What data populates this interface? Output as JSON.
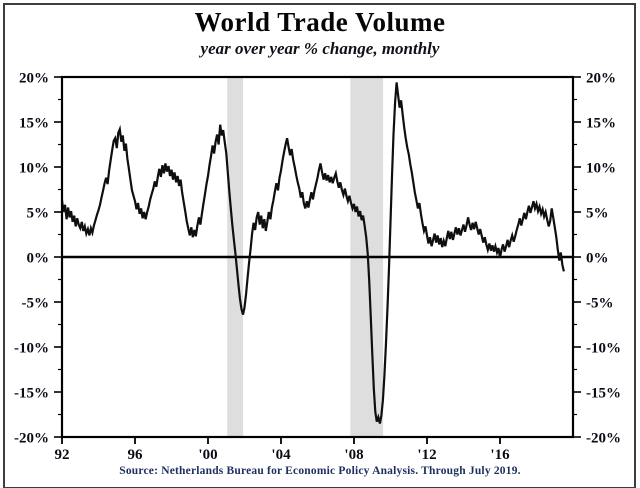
{
  "chart": {
    "title": "World Trade Volume",
    "subtitle": "year over year % change, monthly",
    "source": "Source: Netherlands Bureau for Economic Policy Analysis. Through July 2019."
  },
  "chart_data": {
    "type": "line",
    "title": "World Trade Volume",
    "subtitle": "year over year % change, monthly",
    "xlabel": "",
    "ylabel": "year over year % change",
    "xlim": [
      1992,
      2020
    ],
    "ylim": [
      -20,
      20
    ],
    "grid": false,
    "axes_on_both_sides": true,
    "zero_line": true,
    "line_color": "#0f0f0f",
    "band_color": "#dedede",
    "label_color": "#0b0b16",
    "y_tick_step": 5,
    "y_minor_tick_step": 2.5,
    "y_tick_labels": [
      {
        "value": 20,
        "label": "20%"
      },
      {
        "value": 15,
        "label": "15%"
      },
      {
        "value": 10,
        "label": "10%"
      },
      {
        "value": 5,
        "label": "5%"
      },
      {
        "value": 0,
        "label": "0%"
      },
      {
        "value": -5,
        "label": "-5%"
      },
      {
        "value": -10,
        "label": "-10%"
      },
      {
        "value": -15,
        "label": "-15%"
      },
      {
        "value": -20,
        "label": "-20%"
      }
    ],
    "x_ticks": [
      {
        "year": 1992,
        "label": "92"
      },
      {
        "year": 1996,
        "label": "96"
      },
      {
        "year": 2000,
        "label": "'00"
      },
      {
        "year": 2004,
        "label": "'04"
      },
      {
        "year": 2008,
        "label": "'08"
      },
      {
        "year": 2012,
        "label": "'12"
      },
      {
        "year": 2016,
        "label": "'16"
      }
    ],
    "recession_bands": [
      {
        "start": 2001.05,
        "end": 2001.92
      },
      {
        "start": 2007.8,
        "end": 2009.6
      }
    ],
    "series_name": "World trade volume, yoy % change",
    "x_start_year": 1992,
    "frequency": "monthly",
    "values": [
      6.3,
      5.0,
      5.8,
      4.2,
      5.5,
      4.4,
      5.1,
      3.9,
      4.6,
      3.4,
      4.3,
      3.6,
      3.2,
      3.9,
      2.9,
      3.4,
      2.6,
      3.1,
      2.4,
      3.2,
      2.7,
      3.5,
      4.1,
      4.7,
      5.2,
      5.8,
      6.6,
      7.4,
      8.2,
      8.8,
      8.1,
      9.6,
      10.8,
      11.9,
      12.9,
      13.2,
      12.1,
      13.8,
      14.2,
      12.8,
      13.5,
      11.8,
      12.6,
      10.9,
      9.8,
      8.6,
      7.4,
      6.8,
      6.2,
      5.3,
      6.0,
      4.8,
      5.4,
      4.3,
      5.0,
      4.2,
      5.0,
      5.6,
      6.4,
      7.0,
      7.6,
      8.4,
      7.8,
      8.9,
      9.8,
      8.9,
      10.2,
      9.3,
      10.4,
      9.5,
      10.1,
      9.0,
      9.7,
      8.6,
      9.4,
      8.3,
      9.0,
      7.9,
      8.6,
      7.2,
      6.1,
      5.1,
      4.0,
      3.2,
      2.4,
      3.3,
      2.2,
      3.0,
      2.3,
      3.5,
      4.4,
      3.6,
      4.8,
      5.9,
      7.0,
      8.1,
      9.0,
      10.2,
      11.2,
      12.4,
      11.5,
      12.8,
      13.6,
      12.5,
      14.7,
      13.5,
      14.1,
      12.8,
      11.5,
      9.4,
      7.3,
      5.4,
      3.6,
      1.9,
      0.4,
      -1.3,
      -3.0,
      -4.6,
      -5.8,
      -6.4,
      -5.6,
      -4.2,
      -2.4,
      -0.6,
      0.9,
      2.6,
      3.8,
      3.0,
      4.4,
      5.0,
      3.6,
      4.6,
      3.2,
      4.2,
      2.9,
      3.9,
      5.0,
      4.2,
      5.5,
      6.3,
      7.3,
      8.2,
      7.4,
      8.8,
      9.6,
      10.7,
      11.6,
      12.5,
      13.2,
      12.2,
      11.3,
      12.0,
      10.8,
      10.0,
      9.1,
      8.3,
      7.6,
      6.6,
      7.2,
      6.0,
      5.4,
      6.2,
      5.5,
      6.4,
      7.2,
      6.4,
      7.4,
      8.1,
      8.8,
      9.7,
      10.4,
      9.4,
      8.6,
      9.3,
      8.5,
      9.1,
      8.3,
      8.9,
      8.2,
      8.8,
      9.3,
      8.4,
      7.7,
      8.3,
      7.5,
      6.9,
      7.6,
      6.8,
      6.2,
      6.8,
      6.0,
      5.4,
      5.9,
      5.0,
      5.6,
      4.5,
      5.1,
      4.1,
      4.6,
      3.5,
      2.2,
      0.4,
      -2.6,
      -6.5,
      -10.8,
      -14.6,
      -17.2,
      -18.3,
      -17.8,
      -18.5,
      -17.6,
      -15.9,
      -13.2,
      -9.8,
      -5.6,
      -1.2,
      3.9,
      9.0,
      13.6,
      17.2,
      19.4,
      18.0,
      16.6,
      17.4,
      15.8,
      14.4,
      13.2,
      12.2,
      11.4,
      10.3,
      9.4,
      8.3,
      7.2,
      6.3,
      5.4,
      6.0,
      4.8,
      3.8,
      2.9,
      3.4,
      2.4,
      1.5,
      2.2,
      1.2,
      1.9,
      2.6,
      1.6,
      2.4,
      1.4,
      2.1,
      1.1,
      1.8,
      1.2,
      2.1,
      2.9,
      2.0,
      2.8,
      1.9,
      2.6,
      3.3,
      2.5,
      3.2,
      2.4,
      3.0,
      3.6,
      2.8,
      3.5,
      4.4,
      3.6,
      3.0,
      3.8,
      3.1,
      3.9,
      3.2,
      2.5,
      3.1,
      2.3,
      1.6,
      2.2,
      1.4,
      0.8,
      1.5,
      0.7,
      1.3,
      0.6,
      1.2,
      0.5,
      1.0,
      -0.1,
      0.8,
      1.4,
      0.6,
      1.2,
      1.9,
      1.1,
      1.8,
      2.4,
      1.7,
      2.3,
      3.0,
      3.6,
      4.3,
      3.5,
      4.2,
      4.9,
      4.2,
      5.0,
      5.7,
      4.9,
      5.5,
      6.2,
      5.4,
      5.9,
      5.1,
      5.6,
      4.8,
      5.3,
      4.5,
      5.0,
      4.2,
      3.4,
      4.0,
      5.4,
      4.4,
      3.3,
      2.2,
      0.8,
      -0.4,
      0.5,
      -0.9,
      -1.6
    ]
  }
}
